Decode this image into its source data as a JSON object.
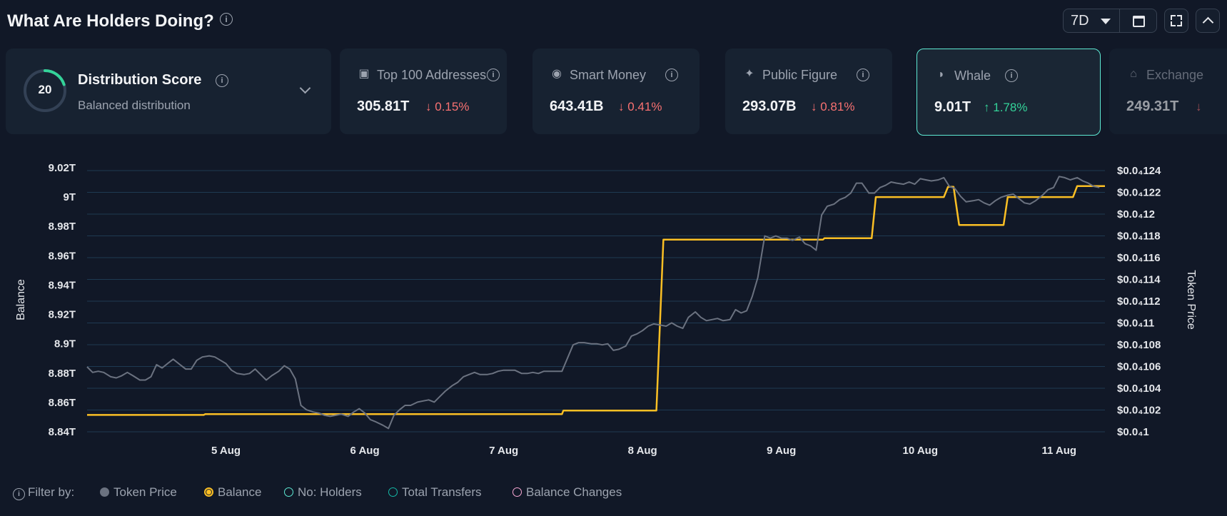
{
  "header": {
    "title": "What Are Holders Doing?",
    "info_icon": "info-icon",
    "period": "7D",
    "calendar_icon": "calendar-icon",
    "fullscreen_icon": "fullscreen-icon",
    "collapse_icon": "chevron-up-icon"
  },
  "distribution": {
    "score": "20",
    "score_value": 20,
    "score_max": 100,
    "title": "Distribution Score",
    "subtitle": "Balanced distribution"
  },
  "metrics": [
    {
      "label": "Top 100 Addresses",
      "value": "305.81T",
      "change": "0.15%",
      "direction": "down",
      "icon": "wallet-icon"
    },
    {
      "label": "Smart Money",
      "value": "643.41B",
      "change": "0.41%",
      "direction": "down",
      "icon": "smart-money-icon"
    },
    {
      "label": "Public Figure",
      "value": "293.07B",
      "change": "0.81%",
      "direction": "down",
      "icon": "public-figure-icon"
    },
    {
      "label": "Whale",
      "value": "9.01T",
      "change": "1.78%",
      "direction": "up",
      "icon": "whale-icon",
      "active": true
    },
    {
      "label": "Exchange",
      "value": "249.31T",
      "change": "",
      "direction": "down",
      "icon": "exchange-icon"
    }
  ],
  "arrows": {
    "down": "↓",
    "up": "↑"
  },
  "legend": {
    "prefix": "Filter by:",
    "items": [
      {
        "label": "Token Price",
        "color": "#6b7280",
        "style": "filled"
      },
      {
        "label": "Balance",
        "color": "#fbbf24",
        "style": "selected"
      },
      {
        "label": "No: Holders",
        "color": "#5eead4",
        "style": "outline"
      },
      {
        "label": "Total Transfers",
        "color": "#14b8a6",
        "style": "outline"
      },
      {
        "label": "Balance Changes",
        "color": "#f9a8d4",
        "style": "outline"
      }
    ]
  },
  "chart_data": {
    "type": "line",
    "ylabel": "Balance",
    "y2label": "Token Price",
    "ylim": [
      8.84,
      9.02
    ],
    "y_ticks": [
      "9.02T",
      "9T",
      "8.98T",
      "8.96T",
      "8.94T",
      "8.92T",
      "8.9T",
      "8.88T",
      "8.86T",
      "8.84T"
    ],
    "y2lim": [
      1e-05,
      1.24e-05
    ],
    "y2_ticks": [
      "$0.0₄124",
      "$0.0₄122",
      "$0.0₄12",
      "$0.0₄118",
      "$0.0₄116",
      "$0.0₄114",
      "$0.0₄112",
      "$0.0₄11",
      "$0.0₄108",
      "$0.0₄106",
      "$0.0₄104",
      "$0.0₄102",
      "$0.0₄1"
    ],
    "x_range": [
      4.0,
      11.33
    ],
    "x_ticks": [
      {
        "label": "5 Aug",
        "x": 5
      },
      {
        "label": "6 Aug",
        "x": 6
      },
      {
        "label": "7 Aug",
        "x": 7
      },
      {
        "label": "8 Aug",
        "x": 8
      },
      {
        "label": "9 Aug",
        "x": 9
      },
      {
        "label": "10 Aug",
        "x": 10
      },
      {
        "label": "11 Aug",
        "x": 11
      }
    ],
    "grid": true,
    "series": [
      {
        "name": "Balance",
        "axis": "left",
        "color": "#fbbf24",
        "points": [
          [
            4.0,
            8.8515
          ],
          [
            4.84,
            8.8515
          ],
          [
            4.85,
            8.852
          ],
          [
            7.42,
            8.852
          ],
          [
            7.43,
            8.8545
          ],
          [
            8.1,
            8.8545
          ],
          [
            8.15,
            8.971
          ],
          [
            9.3,
            8.971
          ],
          [
            9.31,
            8.972
          ],
          [
            9.65,
            8.972
          ],
          [
            9.68,
            9.0
          ],
          [
            10.17,
            9.0
          ],
          [
            10.2,
            9.007
          ],
          [
            10.24,
            9.007
          ],
          [
            10.28,
            8.981
          ],
          [
            10.6,
            8.981
          ],
          [
            10.63,
            9.0
          ],
          [
            11.1,
            9.0
          ],
          [
            11.13,
            9.0075
          ],
          [
            11.33,
            9.0075
          ]
        ]
      },
      {
        "name": "Token Price",
        "axis": "right",
        "color": "#6b7280",
        "points": [
          [
            4.0,
            1.059e-05
          ],
          [
            4.04,
            1.054e-05
          ],
          [
            4.08,
            1.055e-05
          ],
          [
            4.12,
            1.054e-05
          ],
          [
            4.17,
            1.05e-05
          ],
          [
            4.21,
            1.049e-05
          ],
          [
            4.25,
            1.051e-05
          ],
          [
            4.29,
            1.054e-05
          ],
          [
            4.33,
            1.051e-05
          ],
          [
            4.38,
            1.047e-05
          ],
          [
            4.42,
            1.047e-05
          ],
          [
            4.46,
            1.05e-05
          ],
          [
            4.5,
            1.061e-05
          ],
          [
            4.54,
            1.058e-05
          ],
          [
            4.58,
            1.062e-05
          ],
          [
            4.62,
            1.066e-05
          ],
          [
            4.67,
            1.061e-05
          ],
          [
            4.71,
            1.057e-05
          ],
          [
            4.75,
            1.057e-05
          ],
          [
            4.79,
            1.065e-05
          ],
          [
            4.83,
            1.068e-05
          ],
          [
            4.88,
            1.069e-05
          ],
          [
            4.92,
            1.068e-05
          ],
          [
            4.96,
            1.065e-05
          ],
          [
            5.0,
            1.062e-05
          ],
          [
            5.04,
            1.056e-05
          ],
          [
            5.08,
            1.053e-05
          ],
          [
            5.13,
            1.052e-05
          ],
          [
            5.17,
            1.053e-05
          ],
          [
            5.21,
            1.057e-05
          ],
          [
            5.25,
            1.052e-05
          ],
          [
            5.29,
            1.047e-05
          ],
          [
            5.33,
            1.051e-05
          ],
          [
            5.38,
            1.055e-05
          ],
          [
            5.42,
            1.06e-05
          ],
          [
            5.46,
            1.057e-05
          ],
          [
            5.5,
            1.048e-05
          ],
          [
            5.54,
            1.024e-05
          ],
          [
            5.58,
            1.02e-05
          ],
          [
            5.63,
            1.018e-05
          ],
          [
            5.67,
            1.017e-05
          ],
          [
            5.71,
            1.015e-05
          ],
          [
            5.75,
            1.014e-05
          ],
          [
            5.79,
            1.015e-05
          ],
          [
            5.83,
            1.016e-05
          ],
          [
            5.88,
            1.014e-05
          ],
          [
            5.92,
            1.018e-05
          ],
          [
            5.96,
            1.021e-05
          ],
          [
            6.0,
            1.017e-05
          ],
          [
            6.04,
            1.011e-05
          ],
          [
            6.08,
            1.009e-05
          ],
          [
            6.13,
            1.006e-05
          ],
          [
            6.17,
            1.003e-05
          ],
          [
            6.21,
            1.015e-05
          ],
          [
            6.25,
            1.02e-05
          ],
          [
            6.29,
            1.024e-05
          ],
          [
            6.33,
            1.024e-05
          ],
          [
            6.38,
            1.027e-05
          ],
          [
            6.42,
            1.028e-05
          ],
          [
            6.46,
            1.029e-05
          ],
          [
            6.5,
            1.027e-05
          ],
          [
            6.54,
            1.032e-05
          ],
          [
            6.58,
            1.037e-05
          ],
          [
            6.63,
            1.042e-05
          ],
          [
            6.67,
            1.045e-05
          ],
          [
            6.71,
            1.05e-05
          ],
          [
            6.75,
            1.052e-05
          ],
          [
            6.79,
            1.054e-05
          ],
          [
            6.83,
            1.052e-05
          ],
          [
            6.88,
            1.052e-05
          ],
          [
            6.92,
            1.053e-05
          ],
          [
            6.96,
            1.055e-05
          ],
          [
            7.0,
            1.056e-05
          ],
          [
            7.04,
            1.056e-05
          ],
          [
            7.08,
            1.056e-05
          ],
          [
            7.13,
            1.053e-05
          ],
          [
            7.17,
            1.053e-05
          ],
          [
            7.21,
            1.054e-05
          ],
          [
            7.25,
            1.053e-05
          ],
          [
            7.29,
            1.055e-05
          ],
          [
            7.33,
            1.055e-05
          ],
          [
            7.38,
            1.055e-05
          ],
          [
            7.42,
            1.055e-05
          ],
          [
            7.46,
            1.067e-05
          ],
          [
            7.5,
            1.079e-05
          ],
          [
            7.54,
            1.081e-05
          ],
          [
            7.58,
            1.081e-05
          ],
          [
            7.63,
            1.08e-05
          ],
          [
            7.67,
            1.08e-05
          ],
          [
            7.71,
            1.079e-05
          ],
          [
            7.75,
            1.08e-05
          ],
          [
            7.79,
            1.074e-05
          ],
          [
            7.83,
            1.075e-05
          ],
          [
            7.88,
            1.078e-05
          ],
          [
            7.92,
            1.087e-05
          ],
          [
            7.96,
            1.089e-05
          ],
          [
            8.0,
            1.092e-05
          ],
          [
            8.04,
            1.096e-05
          ],
          [
            8.08,
            1.098e-05
          ],
          [
            8.13,
            1.097e-05
          ],
          [
            8.17,
            1.096e-05
          ],
          [
            8.21,
            1.099e-05
          ],
          [
            8.25,
            1.096e-05
          ],
          [
            8.29,
            1.094e-05
          ],
          [
            8.33,
            1.104e-05
          ],
          [
            8.38,
            1.109e-05
          ],
          [
            8.42,
            1.104e-05
          ],
          [
            8.46,
            1.101e-05
          ],
          [
            8.5,
            1.102e-05
          ],
          [
            8.54,
            1.103e-05
          ],
          [
            8.58,
            1.101e-05
          ],
          [
            8.63,
            1.102e-05
          ],
          [
            8.67,
            1.111e-05
          ],
          [
            8.71,
            1.108e-05
          ],
          [
            8.75,
            1.11e-05
          ],
          [
            8.79,
            1.123e-05
          ],
          [
            8.83,
            1.14e-05
          ],
          [
            8.88,
            1.178e-05
          ],
          [
            8.92,
            1.176e-05
          ],
          [
            8.96,
            1.178e-05
          ],
          [
            9.0,
            1.176e-05
          ],
          [
            9.04,
            1.176e-05
          ],
          [
            9.08,
            1.174e-05
          ],
          [
            9.13,
            1.177e-05
          ],
          [
            9.17,
            1.171e-05
          ],
          [
            9.21,
            1.169e-05
          ],
          [
            9.25,
            1.165e-05
          ],
          [
            9.29,
            1.197e-05
          ],
          [
            9.33,
            1.205e-05
          ],
          [
            9.38,
            1.207e-05
          ],
          [
            9.42,
            1.211e-05
          ],
          [
            9.46,
            1.213e-05
          ],
          [
            9.5,
            1.217e-05
          ],
          [
            9.54,
            1.226e-05
          ],
          [
            9.58,
            1.226e-05
          ],
          [
            9.63,
            1.217e-05
          ],
          [
            9.67,
            1.217e-05
          ],
          [
            9.71,
            1.222e-05
          ],
          [
            9.75,
            1.224e-05
          ],
          [
            9.79,
            1.227e-05
          ],
          [
            9.83,
            1.226e-05
          ],
          [
            9.88,
            1.225e-05
          ],
          [
            9.92,
            1.227e-05
          ],
          [
            9.96,
            1.225e-05
          ],
          [
            10.0,
            1.23e-05
          ],
          [
            10.04,
            1.229e-05
          ],
          [
            10.08,
            1.228e-05
          ],
          [
            10.13,
            1.229e-05
          ],
          [
            10.17,
            1.231e-05
          ],
          [
            10.21,
            1.223e-05
          ],
          [
            10.25,
            1.221e-05
          ],
          [
            10.29,
            1.214e-05
          ],
          [
            10.33,
            1.209e-05
          ],
          [
            10.38,
            1.21e-05
          ],
          [
            10.42,
            1.211e-05
          ],
          [
            10.46,
            1.208e-05
          ],
          [
            10.5,
            1.206e-05
          ],
          [
            10.54,
            1.21e-05
          ],
          [
            10.58,
            1.213e-05
          ],
          [
            10.63,
            1.215e-05
          ],
          [
            10.67,
            1.216e-05
          ],
          [
            10.71,
            1.212e-05
          ],
          [
            10.75,
            1.208e-05
          ],
          [
            10.79,
            1.207e-05
          ],
          [
            10.83,
            1.21e-05
          ],
          [
            10.88,
            1.215e-05
          ],
          [
            10.92,
            1.22e-05
          ],
          [
            10.96,
            1.222e-05
          ],
          [
            11.0,
            1.232e-05
          ],
          [
            11.04,
            1.231e-05
          ],
          [
            11.08,
            1.229e-05
          ],
          [
            11.13,
            1.231e-05
          ],
          [
            11.17,
            1.228e-05
          ],
          [
            11.21,
            1.226e-05
          ],
          [
            11.25,
            1.223e-05
          ],
          [
            11.29,
            1.222e-05
          ]
        ]
      }
    ]
  }
}
